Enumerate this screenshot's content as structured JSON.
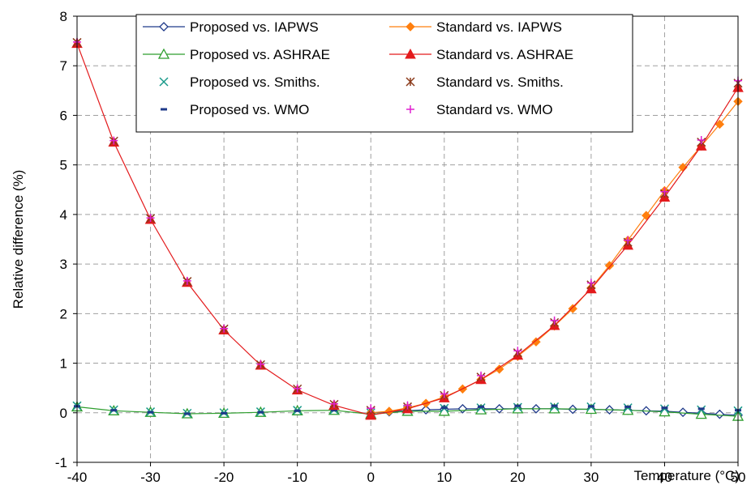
{
  "chart_data": {
    "type": "line",
    "xlabel": "Temperature (°C)",
    "ylabel": "Relative difference (%)",
    "xlim": [
      -40,
      50
    ],
    "ylim": [
      -1,
      8
    ],
    "xticks": [
      -40,
      -30,
      -20,
      -10,
      0,
      10,
      20,
      30,
      40,
      50
    ],
    "yticks": [
      -1,
      0,
      1,
      2,
      3,
      4,
      5,
      6,
      7,
      8
    ],
    "grid": true,
    "legend_position": "top-center",
    "series": [
      {
        "name": "Proposed vs. IAPWS",
        "color": "#1f3a8a",
        "marker": "diamond-open",
        "line": true,
        "x": [
          0,
          2.5,
          5,
          7.5,
          10,
          12.5,
          15,
          17.5,
          20,
          22.5,
          25,
          27.5,
          30,
          32.5,
          35,
          37.5,
          40,
          42.5,
          45,
          47.5,
          50
        ],
        "y": [
          0.0,
          0.02,
          0.04,
          0.06,
          0.07,
          0.08,
          0.08,
          0.08,
          0.08,
          0.08,
          0.08,
          0.07,
          0.07,
          0.06,
          0.05,
          0.04,
          0.03,
          0.01,
          -0.01,
          -0.03,
          -0.05
        ]
      },
      {
        "name": "Proposed vs. ASHRAE",
        "color": "#2e9e2e",
        "marker": "triangle-open",
        "line": true,
        "x": [
          -40,
          -35,
          -30,
          -25,
          -20,
          -15,
          -10,
          -5,
          0,
          5,
          10,
          15,
          20,
          25,
          30,
          35,
          40,
          45,
          50
        ],
        "y": [
          0.12,
          0.04,
          0.01,
          -0.02,
          -0.01,
          0.01,
          0.04,
          0.05,
          -0.03,
          0.03,
          0.03,
          0.06,
          0.08,
          0.08,
          0.07,
          0.05,
          0.02,
          -0.03,
          -0.07
        ]
      },
      {
        "name": "Proposed vs. Smiths.",
        "color": "#1a9a8a",
        "marker": "x",
        "line": false,
        "x": [
          -40,
          -35,
          -30,
          -25,
          -20,
          -15,
          -10,
          -5,
          0,
          5,
          10,
          15,
          20,
          25,
          30,
          35,
          40,
          45,
          50
        ],
        "y": [
          0.14,
          0.06,
          0.02,
          -0.01,
          0.0,
          0.02,
          0.05,
          0.06,
          0.0,
          0.06,
          0.09,
          0.1,
          0.11,
          0.12,
          0.12,
          0.1,
          0.08,
          0.06,
          0.04
        ]
      },
      {
        "name": "Proposed vs. WMO",
        "color": "#1f3a8a",
        "marker": "dash",
        "line": false,
        "x": [
          -40,
          -35,
          -30,
          -25,
          -20,
          -15,
          -10,
          -5,
          0,
          5,
          10,
          15,
          20,
          25,
          30,
          35,
          40,
          45,
          50
        ],
        "y": [
          0.13,
          0.05,
          0.01,
          -0.02,
          -0.01,
          0.01,
          0.04,
          0.05,
          0.0,
          0.08,
          0.1,
          0.12,
          0.14,
          0.14,
          0.13,
          0.12,
          0.1,
          0.08,
          0.05
        ]
      },
      {
        "name": "Standard vs. IAPWS",
        "color": "#ff7f0e",
        "marker": "diamond-filled",
        "line": true,
        "x": [
          0,
          2.5,
          5,
          7.5,
          10,
          12.5,
          15,
          17.5,
          20,
          22.5,
          25,
          27.5,
          30,
          32.5,
          35,
          37.5,
          40,
          42.5,
          45,
          47.5,
          50
        ],
        "y": [
          0.0,
          0.03,
          0.1,
          0.19,
          0.32,
          0.48,
          0.67,
          0.88,
          1.14,
          1.43,
          1.75,
          2.1,
          2.52,
          2.97,
          3.48,
          3.98,
          4.48,
          4.95,
          5.38,
          5.82,
          6.28
        ]
      },
      {
        "name": "Standard vs. ASHRAE",
        "color": "#e31a1c",
        "marker": "triangle-filled",
        "line": true,
        "x": [
          -40,
          -35,
          -30,
          -25,
          -20,
          -15,
          -10,
          -5,
          0,
          5,
          10,
          15,
          20,
          25,
          30,
          35,
          40,
          45,
          50
        ],
        "y": [
          7.45,
          5.46,
          3.9,
          2.63,
          1.67,
          0.96,
          0.46,
          0.15,
          -0.05,
          0.08,
          0.3,
          0.67,
          1.16,
          1.76,
          2.5,
          3.38,
          4.35,
          5.38,
          6.56
        ]
      },
      {
        "name": "Standard vs. Smiths.",
        "color": "#8b3a1a",
        "marker": "asterisk",
        "line": false,
        "x": [
          -40,
          -35,
          -30,
          -25,
          -20,
          -15,
          -10,
          -5,
          0,
          5,
          10,
          15,
          20,
          25,
          30,
          35,
          40,
          45,
          50
        ],
        "y": [
          7.47,
          5.48,
          3.92,
          2.65,
          1.69,
          0.97,
          0.48,
          0.17,
          0.05,
          0.12,
          0.35,
          0.72,
          1.21,
          1.82,
          2.58,
          3.44,
          4.42,
          5.46,
          6.65
        ]
      },
      {
        "name": "Standard vs. WMO",
        "color": "#e020d0",
        "marker": "plus",
        "line": false,
        "x": [
          -40,
          -35,
          -30,
          -25,
          -20,
          -15,
          -10,
          -5,
          0,
          5,
          10,
          15,
          20,
          25,
          30,
          35,
          40,
          45,
          50
        ],
        "y": [
          7.48,
          5.49,
          3.93,
          2.66,
          1.7,
          0.98,
          0.49,
          0.18,
          0.09,
          0.15,
          0.38,
          0.75,
          1.25,
          1.86,
          2.62,
          3.48,
          4.46,
          5.5,
          6.7
        ]
      }
    ]
  }
}
